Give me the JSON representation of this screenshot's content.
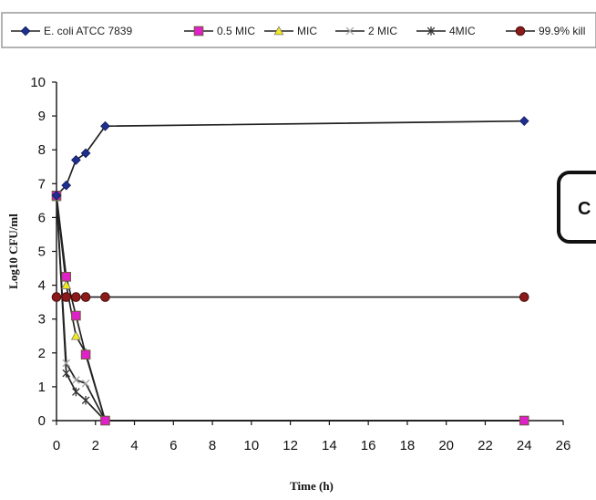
{
  "chart_data": {
    "type": "line",
    "title": "",
    "xlabel": "Time (h)",
    "ylabel": "Log10 CFU/ml",
    "xlim": [
      0,
      26
    ],
    "ylim": [
      0,
      10
    ],
    "xticks": [
      0,
      2,
      4,
      6,
      8,
      10,
      12,
      14,
      16,
      18,
      20,
      22,
      24,
      26
    ],
    "yticks": [
      0,
      1,
      2,
      3,
      4,
      5,
      6,
      7,
      8,
      9,
      10
    ],
    "grid": false,
    "legend_position": "top",
    "panel_label": "C",
    "series": [
      {
        "name": "E. coli ATCC 7839",
        "color": "#1f2f8f",
        "marker": "diamond",
        "points": [
          [
            0,
            6.65
          ],
          [
            0.5,
            6.95
          ],
          [
            1,
            7.7
          ],
          [
            1.5,
            7.9
          ],
          [
            2.5,
            8.7
          ],
          [
            24,
            8.85
          ]
        ]
      },
      {
        "name": "0.5 MIC",
        "color": "#e020c8",
        "marker": "square",
        "points": [
          [
            0,
            6.65
          ],
          [
            0.5,
            4.25
          ],
          [
            1,
            3.1
          ],
          [
            1.5,
            1.95
          ],
          [
            2.5,
            0
          ],
          [
            24,
            0
          ]
        ]
      },
      {
        "name": "MIC",
        "color": "#f2ea1a",
        "marker": "triangle",
        "points": [
          [
            0,
            6.6
          ],
          [
            0.5,
            4.0
          ],
          [
            1,
            2.5
          ],
          [
            1.5,
            2.0
          ],
          [
            2.5,
            0
          ],
          [
            24,
            0
          ]
        ]
      },
      {
        "name": "2 MIC",
        "color": "#444444",
        "marker": "x",
        "points": [
          [
            0,
            6.6
          ],
          [
            0.5,
            1.7
          ],
          [
            1,
            1.2
          ],
          [
            1.5,
            1.1
          ],
          [
            2.5,
            0
          ],
          [
            24,
            0
          ]
        ]
      },
      {
        "name": "4MIC",
        "color": "#444444",
        "marker": "star",
        "points": [
          [
            0,
            6.6
          ],
          [
            0.5,
            1.4
          ],
          [
            1,
            0.85
          ],
          [
            1.5,
            0.6
          ],
          [
            2.5,
            0
          ],
          [
            24,
            0
          ]
        ]
      },
      {
        "name": "99.9% kill",
        "color": "#8b1a1a",
        "marker": "circle",
        "points": [
          [
            0,
            3.65
          ],
          [
            0.5,
            3.65
          ],
          [
            1,
            3.65
          ],
          [
            1.5,
            3.65
          ],
          [
            2.5,
            3.65
          ],
          [
            24,
            3.65
          ]
        ]
      }
    ]
  }
}
